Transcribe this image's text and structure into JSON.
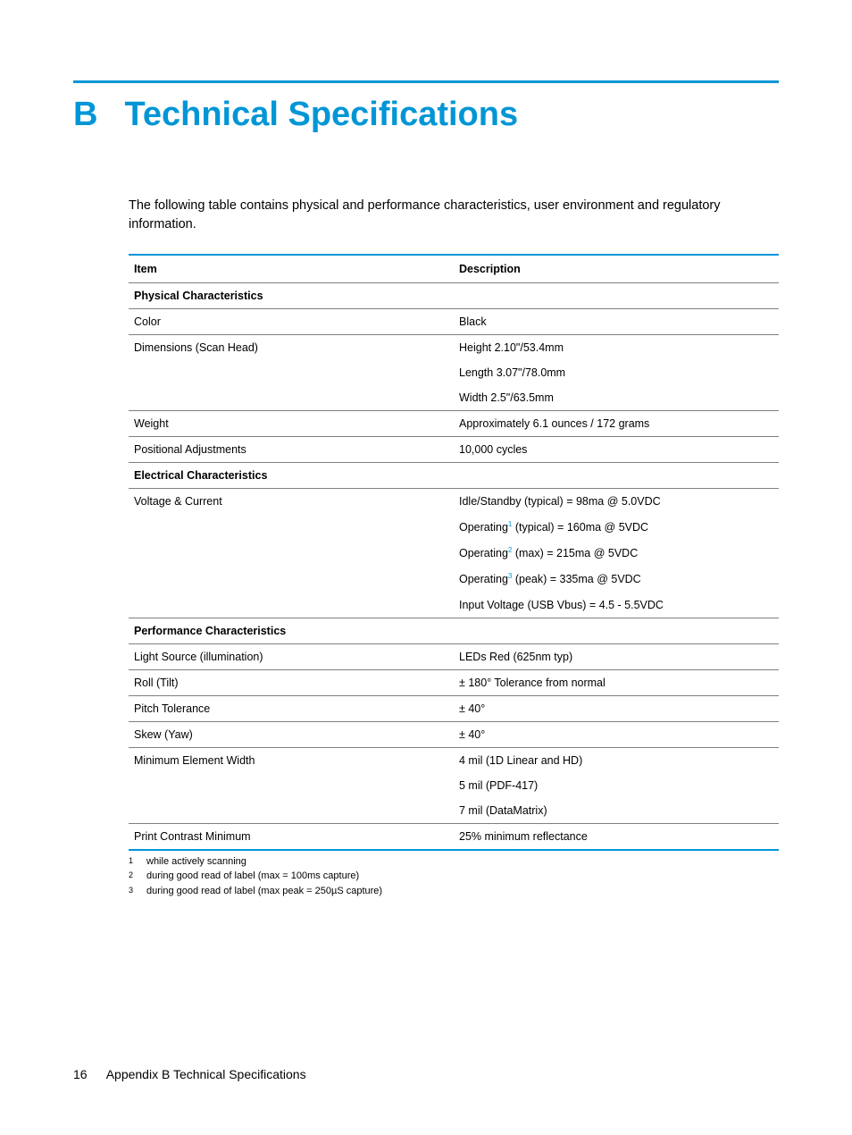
{
  "colors": {
    "accent": "#0096d6",
    "text": "#000000",
    "rule_gray": "#7f7f7f",
    "background": "#ffffff"
  },
  "heading": {
    "letter": "B",
    "title": "Technical Specifications"
  },
  "intro": "The following table contains physical and performance characteristics, user environment and regulatory information.",
  "table": {
    "headers": {
      "item": "Item",
      "description": "Description"
    },
    "sections": [
      {
        "title": "Physical Characteristics",
        "rows": [
          {
            "item": "Color",
            "desc": [
              "Black"
            ]
          },
          {
            "item": "Dimensions (Scan Head)",
            "desc": [
              "Height 2.10\"/53.4mm",
              "Length 3.07\"/78.0mm",
              "Width 2.5\"/63.5mm"
            ]
          },
          {
            "item": "Weight",
            "desc": [
              "Approximately 6.1 ounces / 172 grams"
            ]
          },
          {
            "item": "Positional Adjustments",
            "desc": [
              "10,000 cycles"
            ]
          }
        ]
      },
      {
        "title": "Electrical Characteristics",
        "rows": [
          {
            "item": "Voltage & Current",
            "desc": [
              "Idle/Standby (typical) = 98ma @ 5.0VDC",
              {
                "pre": "Operating",
                "sup": "1",
                "post": " (typical) = 160ma @ 5VDC"
              },
              {
                "pre": "Operating",
                "sup": "2",
                "post": " (max) = 215ma @ 5VDC"
              },
              {
                "pre": "Operating",
                "sup": "3",
                "post": " (peak) = 335ma @ 5VDC"
              },
              "Input Voltage (USB Vbus) = 4.5 - 5.5VDC"
            ]
          }
        ]
      },
      {
        "title": "Performance Characteristics",
        "rows": [
          {
            "item": "Light Source (illumination)",
            "desc": [
              "LEDs Red (625nm typ)"
            ]
          },
          {
            "item": "Roll (Tilt)",
            "desc": [
              "± 180° Tolerance from normal"
            ]
          },
          {
            "item": "Pitch Tolerance",
            "desc": [
              "± 40°"
            ]
          },
          {
            "item": "Skew (Yaw)",
            "desc": [
              "± 40°"
            ]
          },
          {
            "item": "Minimum Element Width",
            "desc": [
              "4 mil (1D Linear and HD)",
              "5 mil (PDF-417)",
              "7 mil (DataMatrix)"
            ]
          },
          {
            "item": "Print Contrast Minimum",
            "desc": [
              "25% minimum reflectance"
            ]
          }
        ]
      }
    ]
  },
  "footnotes": [
    {
      "num": "1",
      "text": "while actively scanning"
    },
    {
      "num": "2",
      "text": "during good read of label (max = 100ms capture)"
    },
    {
      "num": "3",
      "text": "during good read of label (max peak = 250µS capture)"
    }
  ],
  "footer": {
    "page_number": "16",
    "text": "Appendix B   Technical Specifications"
  }
}
